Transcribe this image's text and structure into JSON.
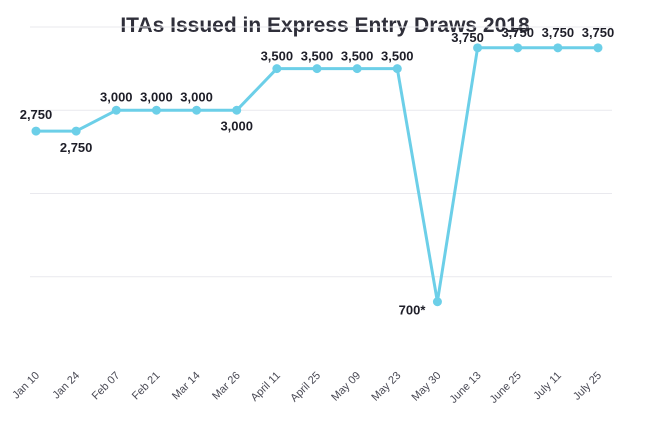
{
  "chart_data": {
    "type": "line",
    "title": "ITAs Issued in Express Entry Draws 2018",
    "xlabel": "",
    "ylabel": "",
    "categories": [
      "Jan 10",
      "Jan 24",
      "Feb 07",
      "Feb 21",
      "Mar 14",
      "Mar 26",
      "April 11",
      "April 25",
      "May 09",
      "May 23",
      "May 30",
      "June 13",
      "June 25",
      "July 11",
      "July 25"
    ],
    "series": [
      {
        "values": [
          2750,
          2750,
          3000,
          3000,
          3000,
          3000,
          3500,
          3500,
          3500,
          3500,
          700,
          3750,
          3750,
          3750,
          3750
        ],
        "data_labels": [
          "2,750",
          "2,750",
          "3,000",
          "3,000",
          "3,000",
          "3,000",
          "3,500",
          "3,500",
          "3,500",
          "3,500",
          "700*",
          "3,750",
          "3,750",
          "3,750",
          "3,750"
        ]
      }
    ],
    "ylim": [
      0,
      4000
    ],
    "grid": true,
    "line_color": "#6ccfe8"
  }
}
